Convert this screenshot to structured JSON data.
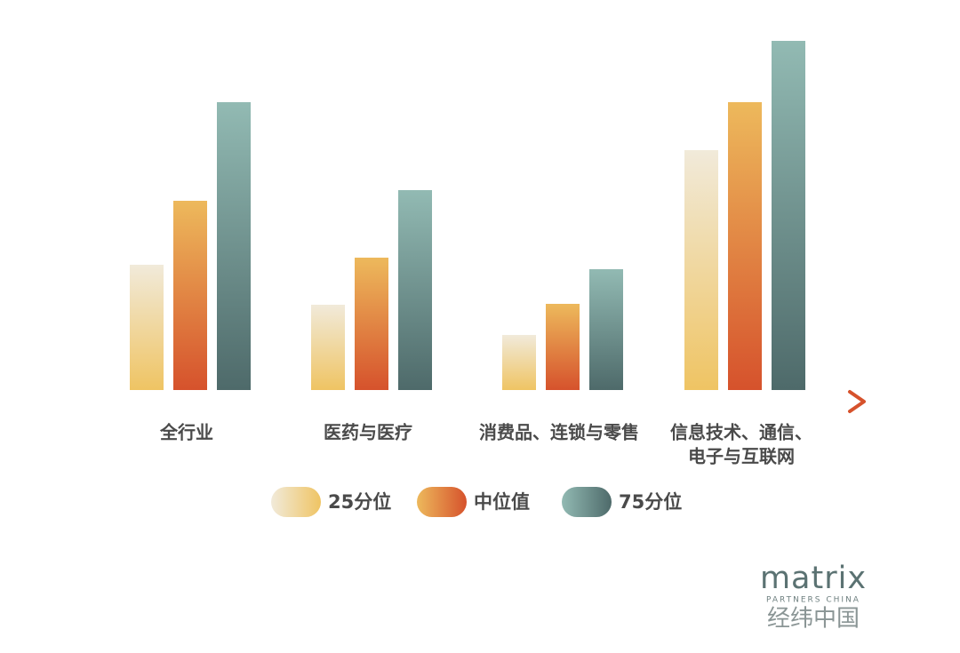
{
  "chart_data": {
    "type": "bar",
    "categories": [
      [
        "全行业"
      ],
      [
        "医药与医疗"
      ],
      [
        "消费品、连锁与零售"
      ],
      [
        "信息技术、通信、",
        "电子与互联网"
      ]
    ],
    "series": [
      {
        "name": "25分位",
        "color": [
          "#f1eada",
          "#efc463"
        ],
        "values": [
          141,
          96,
          62,
          270
        ]
      },
      {
        "name": "中位值",
        "color": [
          "#edb95c",
          "#d6522c"
        ],
        "values": [
          213,
          149,
          97,
          324
        ]
      },
      {
        "name": "75分位",
        "color": [
          "#92bab3",
          "#4e6a6a"
        ],
        "values": [
          324,
          225,
          136,
          393
        ]
      }
    ],
    "ylim": [
      0,
      400
    ],
    "axis_color": [
      "#efc463",
      "#d6522c"
    ]
  },
  "logo": {
    "name": "matrix",
    "tagline": "PARTNERS CHINA",
    "chinese": "经纬中国"
  }
}
